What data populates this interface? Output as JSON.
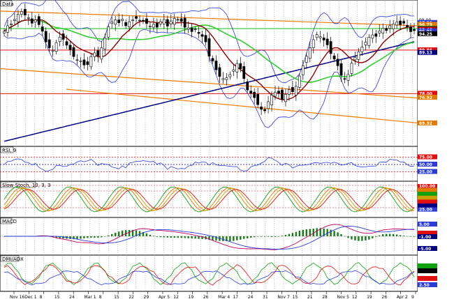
{
  "chart_data": [
    {
      "type": "candlestick",
      "pane": "price",
      "title": "Data",
      "y_ticks": [
        {
          "value": 98.0,
          "label": "98.00"
        }
      ],
      "price_badges": [
        {
          "label": "97.29",
          "value": 97.29,
          "color": "#2a3bd6"
        },
        {
          "label": "96.79",
          "value": 96.79,
          "color": "#e07a00"
        },
        {
          "label": "95.72",
          "value": 95.72,
          "color": "#10a010"
        },
        {
          "label": "95.57",
          "value": 95.57,
          "color": "#000000"
        },
        {
          "label": "95.48",
          "value": 95.48,
          "color": "#c00000"
        },
        {
          "label": "95.01",
          "value": 95.01,
          "color": "#2a3bd6"
        },
        {
          "label": "94.25",
          "value": 94.25,
          "color": "#000000"
        },
        {
          "label": "89.86",
          "value": 89.86,
          "color": "#e01010"
        },
        {
          "label": "89.13",
          "value": 89.13,
          "color": "#000080"
        },
        {
          "label": "78.00",
          "value": 78.0,
          "color": "#e01010"
        },
        {
          "label": "76.92",
          "value": 76.92,
          "color": "#e07a00"
        },
        {
          "label": "69.92",
          "value": 69.92,
          "color": "#e07a00"
        }
      ],
      "horizontal_lines": [
        {
          "value": 95.72,
          "color": "#10c010"
        },
        {
          "value": 89.86,
          "color": "#e01010"
        },
        {
          "value": 78.0,
          "color": "#e01010"
        }
      ],
      "ylim": [
        64,
        102
      ],
      "series_colors": {
        "ma_fast": "#8b0000",
        "ma_slow": "#33cc33",
        "ma_long": "#000080",
        "bollinger": "#2a3bd6",
        "trend": "#f07a00"
      },
      "close": [
        95.0,
        96.5,
        97.0,
        98.2,
        99.6,
        100.4,
        99.4,
        98.7,
        97.2,
        98.1,
        96.8,
        95.0,
        92.1,
        90.5,
        89.8,
        91.9,
        93.4,
        92.8,
        91.2,
        90.0,
        88.1,
        87.2,
        86.9,
        85.8,
        85.9,
        88.1,
        89.1,
        88.3,
        90.5,
        93.1,
        96.2,
        97.5,
        98.1,
        97.3,
        98.3,
        96.5,
        97.6,
        98.1,
        98.5,
        98.0,
        97.8,
        97.1,
        96.4,
        96.9,
        96.1,
        97.6,
        98.2,
        96.4,
        97.8,
        98.5,
        98.1,
        97.7,
        96.1,
        95.9,
        94.9,
        95.6,
        94.4,
        93.6,
        92.1,
        88.2,
        86.9,
        84.5,
        82.7,
        82.1,
        82.3,
        83.2,
        84.5,
        86.2,
        84.8,
        82.1,
        79.0,
        78.1,
        76.9,
        75.0,
        73.7,
        73.3,
        75.8,
        77.6,
        78.4,
        78.1,
        76.4,
        77.8,
        79.1,
        78.5,
        80.0,
        82.8,
        85.6,
        88.2,
        90.5,
        92.7,
        94.1,
        93.5,
        92.6,
        91.3,
        88.9,
        87.4,
        85.6,
        83.0,
        81.9,
        83.2,
        86.3,
        87.9,
        89.4,
        90.7,
        92.0,
        93.4,
        94.0,
        93.6,
        95.1,
        95.8,
        95.2,
        96.5,
        97.0,
        97.5,
        96.8,
        97.2,
        96.2,
        94.9,
        95.2
      ],
      "rsi": {
        "label": "RSI, 9",
        "levels": [
          75,
          50,
          25
        ],
        "badges": [
          "75.00",
          "50.00",
          "25.00"
        ]
      },
      "stochastic": {
        "label": "Slow Stoch, 10, 3, 3",
        "levels": [
          100,
          80,
          20
        ],
        "badges": [
          "100.00",
          "",
          "",
          "",
          "",
          "",
          "25.00"
        ]
      },
      "macd": {
        "label": "MACD",
        "badges": [
          "5.00",
          "",
          "-1.00",
          "-5.00"
        ]
      },
      "dmi": {
        "label": "DMI/ADX",
        "badges": [
          "",
          "",
          "",
          "2.50"
        ]
      },
      "x_tick_labels": [
        "Nov 16",
        "Dec 1",
        "8",
        "15",
        "24",
        "Mar 1",
        "8",
        "15",
        "22",
        "29",
        "Apr 5",
        "12",
        "19",
        "26",
        "Mar 4",
        "17",
        "24",
        "31",
        "Nov 7",
        "15",
        "21",
        "28",
        "Nov 5",
        "12",
        "19",
        "26",
        "Apr 2",
        "9"
      ]
    }
  ]
}
